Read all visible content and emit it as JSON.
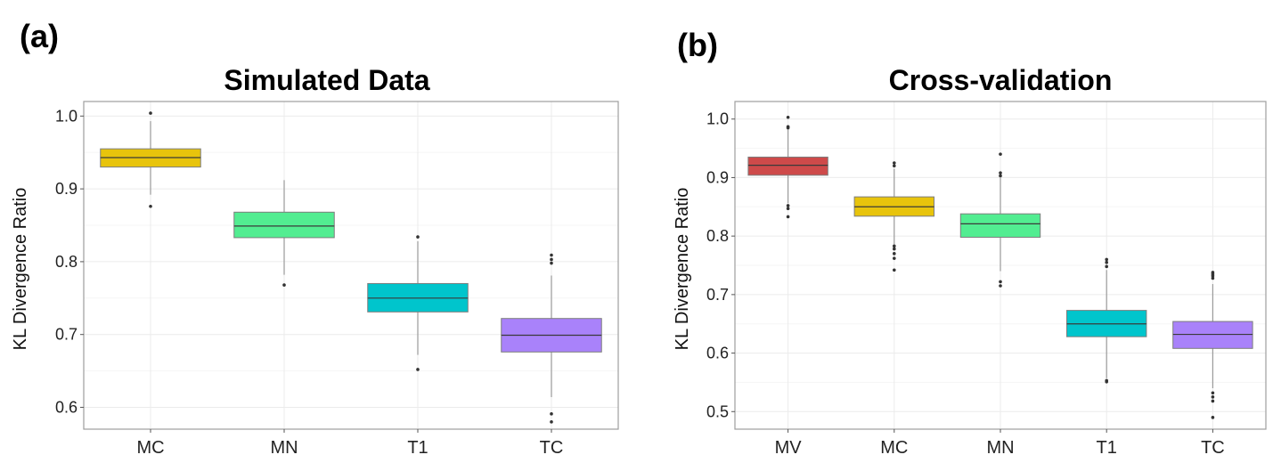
{
  "chart_data": [
    {
      "type": "box",
      "panel_label": "(a)",
      "title": "Simulated Data",
      "xlabel": "",
      "ylabel": "KL Divergence Ratio",
      "ylim": [
        0.57,
        1.02
      ],
      "yticks": [
        0.6,
        0.7,
        0.8,
        0.9,
        1.0
      ],
      "ytick_labels": [
        "0.6",
        "0.7",
        "0.8",
        "0.9",
        "1.0"
      ],
      "grid": true,
      "categories": [
        "MC",
        "MN",
        "T1",
        "TC"
      ],
      "boxes": [
        {
          "name": "MC",
          "color": "#E8C40C",
          "whisker_low": 0.892,
          "q1": 0.93,
          "median": 0.943,
          "q3": 0.955,
          "whisker_high": 0.993,
          "outliers": [
            1.004,
            0.876
          ]
        },
        {
          "name": "MN",
          "color": "#52ED91",
          "whisker_low": 0.782,
          "q1": 0.833,
          "median": 0.849,
          "q3": 0.868,
          "whisker_high": 0.912,
          "outliers": [
            0.768
          ]
        },
        {
          "name": "T1",
          "color": "#00C5CC",
          "whisker_low": 0.672,
          "q1": 0.731,
          "median": 0.75,
          "q3": 0.77,
          "whisker_high": 0.828,
          "outliers": [
            0.834,
            0.652
          ]
        },
        {
          "name": "TC",
          "color": "#A982FA",
          "whisker_low": 0.614,
          "q1": 0.676,
          "median": 0.699,
          "q3": 0.722,
          "whisker_high": 0.781,
          "outliers": [
            0.809,
            0.803,
            0.798,
            0.591,
            0.58
          ]
        }
      ]
    },
    {
      "type": "box",
      "panel_label": "(b)",
      "title": "Cross-validation",
      "xlabel": "",
      "ylabel": "KL Divergence Ratio",
      "ylim": [
        0.47,
        1.03
      ],
      "yticks": [
        0.5,
        0.6,
        0.7,
        0.8,
        0.9,
        1.0
      ],
      "ytick_labels": [
        "0.5",
        "0.6",
        "0.7",
        "0.8",
        "0.9",
        "1.0"
      ],
      "grid": true,
      "categories": [
        "MV",
        "MC",
        "MN",
        "T1",
        "TC"
      ],
      "boxes": [
        {
          "name": "MV",
          "color": "#CE4A4A",
          "whisker_low": 0.856,
          "q1": 0.904,
          "median": 0.921,
          "q3": 0.935,
          "whisker_high": 0.982,
          "outliers": [
            1.003,
            0.987,
            0.985,
            0.852,
            0.847,
            0.833
          ]
        },
        {
          "name": "MC",
          "color": "#E8C40C",
          "whisker_low": 0.786,
          "q1": 0.834,
          "median": 0.85,
          "q3": 0.867,
          "whisker_high": 0.915,
          "outliers": [
            0.925,
            0.92,
            0.783,
            0.778,
            0.77,
            0.762,
            0.742
          ]
        },
        {
          "name": "MN",
          "color": "#52ED91",
          "whisker_low": 0.74,
          "q1": 0.798,
          "median": 0.821,
          "q3": 0.838,
          "whisker_high": 0.9,
          "outliers": [
            0.94,
            0.908,
            0.903,
            0.722,
            0.715
          ]
        },
        {
          "name": "T1",
          "color": "#00C5CC",
          "whisker_low": 0.557,
          "q1": 0.628,
          "median": 0.65,
          "q3": 0.673,
          "whisker_high": 0.742,
          "outliers": [
            0.76,
            0.755,
            0.748,
            0.553,
            0.551
          ]
        },
        {
          "name": "TC",
          "color": "#A982FA",
          "whisker_low": 0.54,
          "q1": 0.608,
          "median": 0.632,
          "q3": 0.654,
          "whisker_high": 0.718,
          "outliers": [
            0.738,
            0.735,
            0.732,
            0.728,
            0.532,
            0.525,
            0.518,
            0.49
          ]
        }
      ]
    }
  ]
}
